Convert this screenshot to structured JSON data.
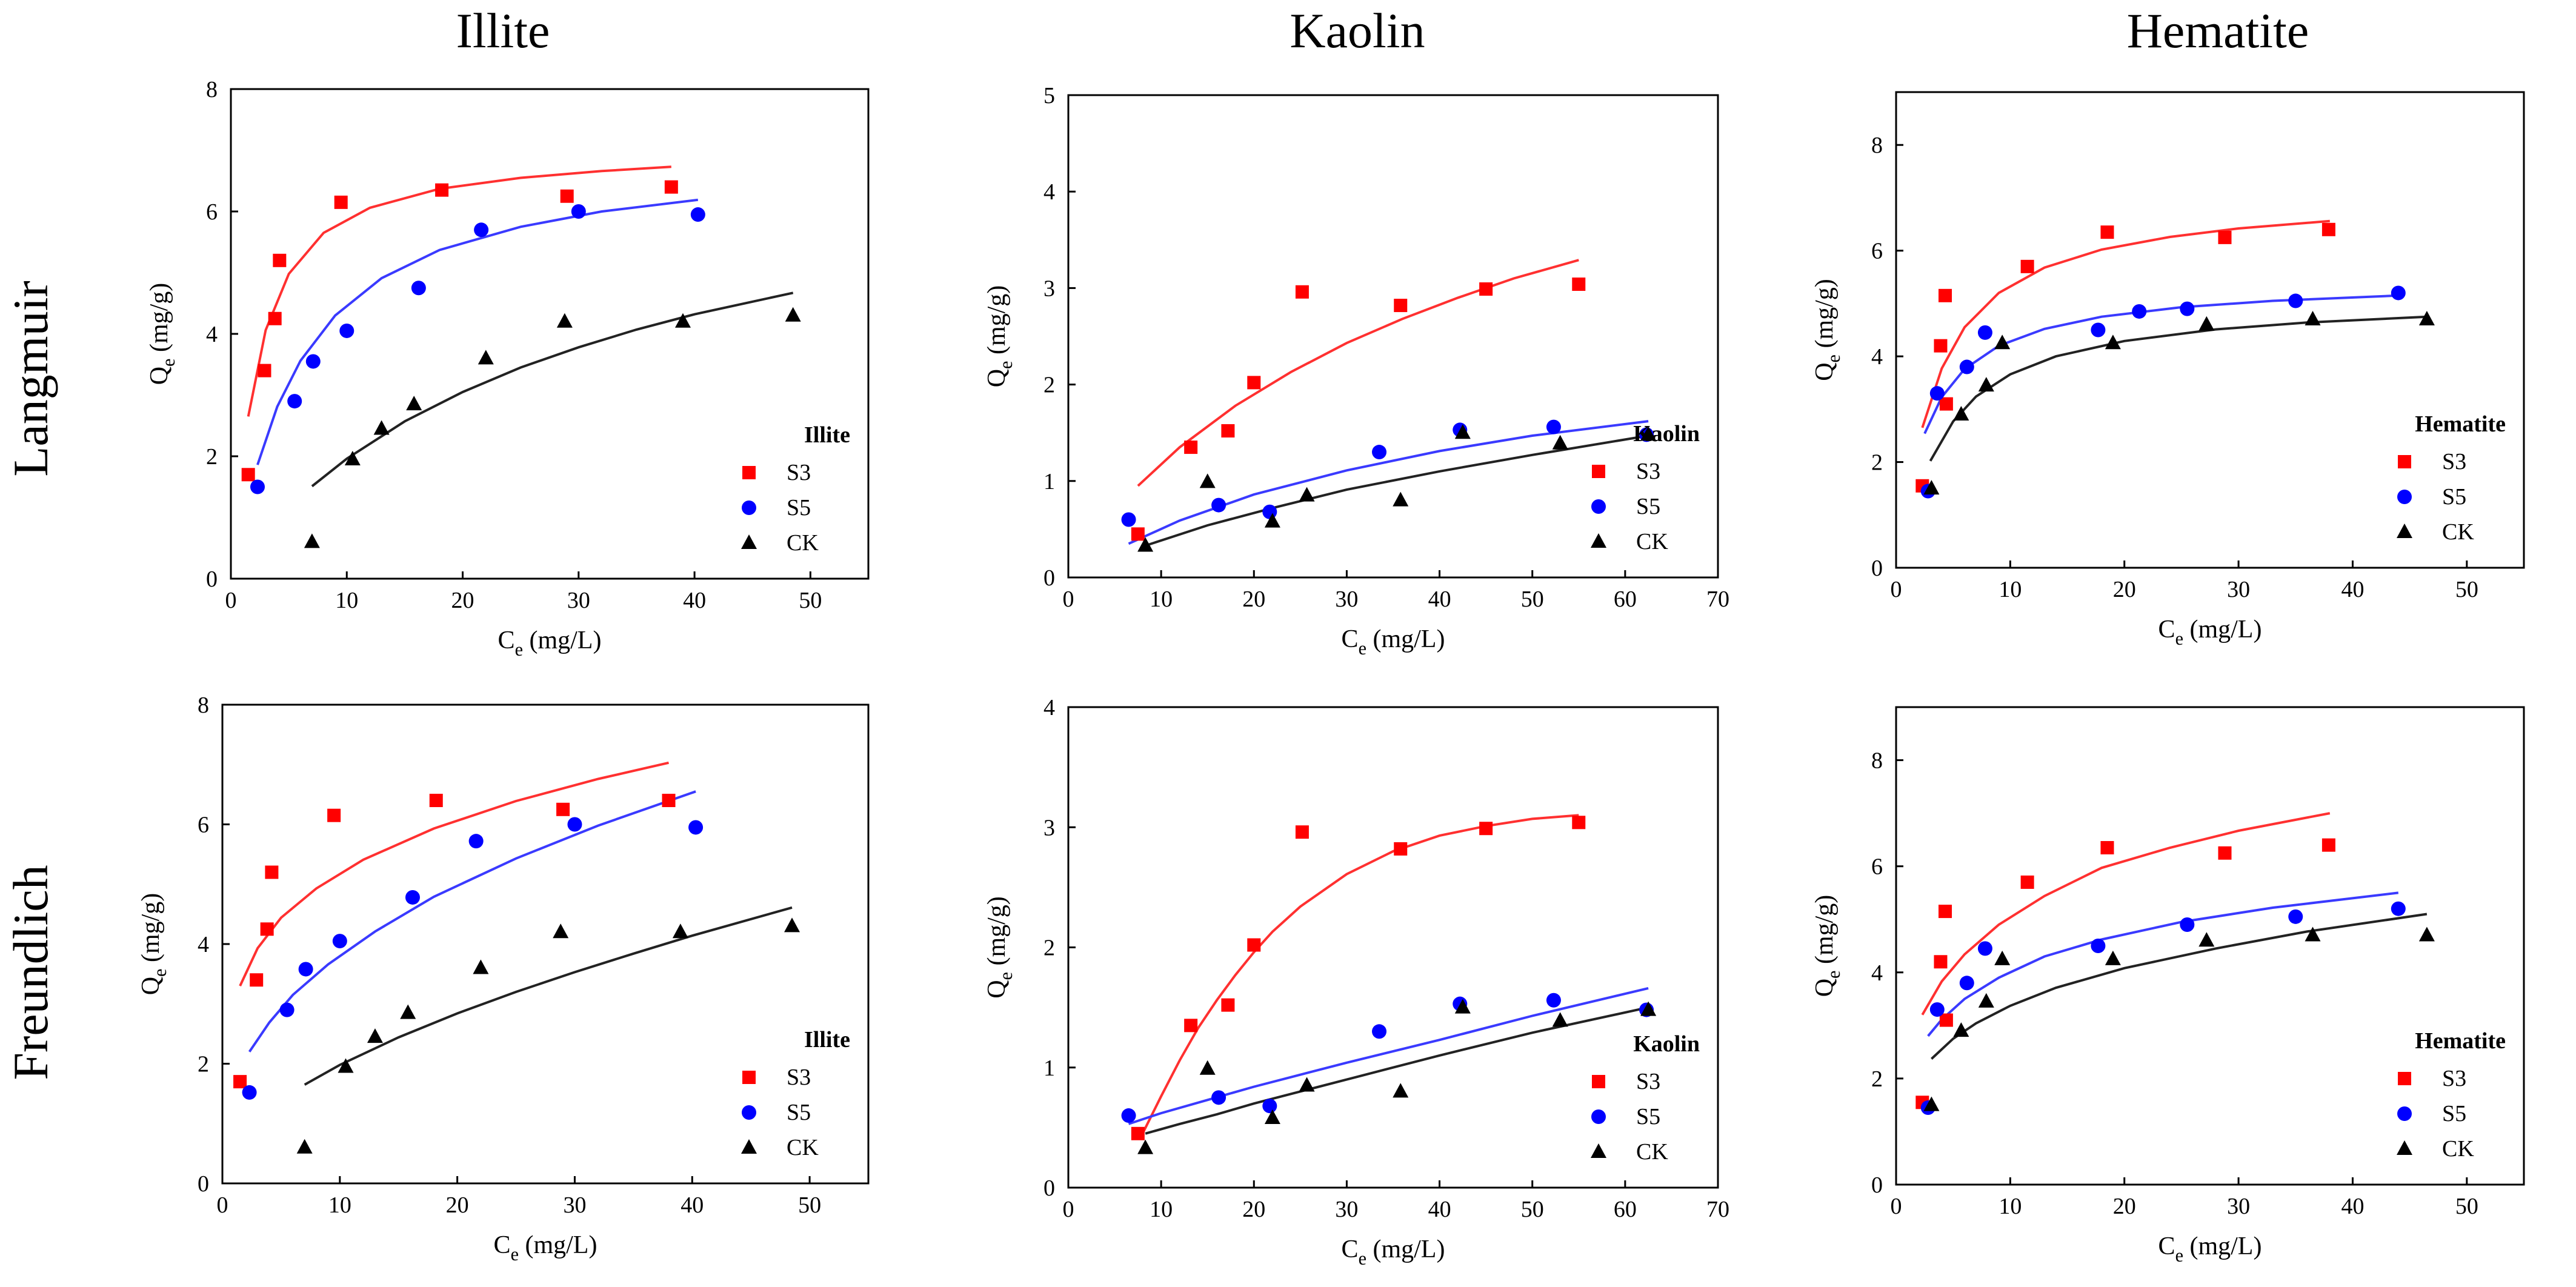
{
  "figure": {
    "column_titles": [
      "Illite",
      "Kaolin",
      "Hematite"
    ],
    "row_titles": [
      "Langmuir",
      "Freundlich"
    ]
  },
  "colors": {
    "S3": "#ff0000",
    "S5": "#0000ff",
    "CK": "#000000",
    "fit_S3": "#ff3030",
    "fit_S5": "#3a3aff",
    "fit_CK": "#222222"
  },
  "chart_data": [
    {
      "type": "scatter",
      "panel": "illite-langmuir",
      "model": "Langmuir",
      "xlabel": "Ce (mg/L)",
      "ylabel": "Qe (mg/g)",
      "xlim": [
        0,
        55
      ],
      "ylim": [
        0,
        8
      ],
      "xticks": [
        0,
        10,
        20,
        30,
        40,
        50
      ],
      "yticks": [
        0,
        2,
        4,
        6,
        8
      ],
      "legend_title": "Illite",
      "legend_position": "bottom-right",
      "series": [
        {
          "name": "S3",
          "marker": "square",
          "x": [
            1.5,
            2.9,
            3.8,
            4.2,
            9.5,
            18.2,
            29.0,
            38.0
          ],
          "y": [
            1.7,
            3.4,
            4.25,
            5.2,
            6.15,
            6.35,
            6.25,
            6.4
          ]
        },
        {
          "name": "S5",
          "marker": "circle",
          "x": [
            2.3,
            5.5,
            7.1,
            10.0,
            16.2,
            21.6,
            30.0,
            40.3
          ],
          "y": [
            1.5,
            2.9,
            3.55,
            4.05,
            4.75,
            5.7,
            6.0,
            5.95
          ]
        },
        {
          "name": "CK",
          "marker": "triangle",
          "x": [
            7.0,
            10.5,
            13.0,
            15.8,
            22.0,
            28.8,
            39.0,
            48.5
          ],
          "y": [
            0.6,
            1.95,
            2.45,
            2.85,
            3.6,
            4.2,
            4.2,
            4.3
          ]
        }
      ],
      "fits": [
        {
          "name": "S3",
          "x": [
            1.5,
            3,
            5,
            8,
            12,
            18,
            25,
            32,
            38
          ],
          "y": [
            2.65,
            4.06,
            4.98,
            5.65,
            6.06,
            6.37,
            6.55,
            6.66,
            6.73
          ]
        },
        {
          "name": "S5",
          "x": [
            2.3,
            4,
            6,
            9,
            13,
            18,
            25,
            32,
            40.3
          ],
          "y": [
            1.86,
            2.81,
            3.56,
            4.3,
            4.91,
            5.37,
            5.75,
            6.0,
            6.19
          ]
        },
        {
          "name": "CK",
          "x": [
            7,
            10,
            15,
            20,
            25,
            30,
            35,
            40,
            48.5
          ],
          "y": [
            1.51,
            1.96,
            2.57,
            3.05,
            3.45,
            3.78,
            4.07,
            4.32,
            4.67
          ]
        }
      ]
    },
    {
      "type": "scatter",
      "panel": "kaolin-langmuir",
      "model": "Langmuir",
      "xlabel": "Ce (mg/L)",
      "ylabel": "Qe (mg/g)",
      "xlim": [
        0,
        70
      ],
      "ylim": [
        0,
        5
      ],
      "xticks": [
        0,
        10,
        20,
        30,
        40,
        50,
        60,
        70
      ],
      "yticks": [
        0,
        1,
        2,
        3,
        4,
        5
      ],
      "legend_title": "Kaolin",
      "legend_position": "bottom-right",
      "series": [
        {
          "name": "S3",
          "marker": "square",
          "x": [
            7.5,
            13.2,
            17.2,
            20.0,
            25.2,
            35.8,
            45.0,
            55.0
          ],
          "y": [
            0.45,
            1.35,
            1.52,
            2.02,
            2.96,
            2.82,
            2.99,
            3.04
          ]
        },
        {
          "name": "S5",
          "marker": "circle",
          "x": [
            6.5,
            16.2,
            21.7,
            33.5,
            42.2,
            52.3,
            62.3
          ],
          "y": [
            0.6,
            0.75,
            0.68,
            1.3,
            1.53,
            1.56,
            1.48
          ]
        },
        {
          "name": "CK",
          "marker": "triangle",
          "x": [
            8.3,
            15.0,
            22.0,
            25.7,
            35.8,
            42.5,
            53.0,
            62.5
          ],
          "y": [
            0.33,
            0.99,
            0.58,
            0.85,
            0.8,
            1.5,
            1.39,
            1.48
          ]
        }
      ],
      "fits": [
        {
          "name": "S3",
          "x": [
            7.5,
            12,
            18,
            24,
            30,
            36,
            42,
            48,
            55
          ],
          "y": [
            0.95,
            1.35,
            1.78,
            2.13,
            2.43,
            2.68,
            2.9,
            3.1,
            3.29
          ]
        },
        {
          "name": "S5",
          "x": [
            6.5,
            12,
            20,
            30,
            40,
            50,
            62.5
          ],
          "y": [
            0.35,
            0.59,
            0.86,
            1.11,
            1.31,
            1.47,
            1.62
          ]
        },
        {
          "name": "CK",
          "x": [
            8.3,
            15,
            22,
            30,
            40,
            50,
            62.5
          ],
          "y": [
            0.33,
            0.54,
            0.72,
            0.91,
            1.1,
            1.27,
            1.47
          ]
        }
      ]
    },
    {
      "type": "scatter",
      "panel": "hematite-langmuir",
      "model": "Langmuir",
      "xlabel": "Ce (mg/L)",
      "ylabel": "Qe (mg/g)",
      "xlim": [
        0,
        55
      ],
      "ylim": [
        0,
        9
      ],
      "xticks": [
        0,
        10,
        20,
        30,
        40,
        50
      ],
      "yticks": [
        0,
        2,
        4,
        6,
        8
      ],
      "legend_title": "Hematite",
      "legend_position": "bottom-right",
      "series": [
        {
          "name": "S3",
          "marker": "square",
          "x": [
            2.3,
            3.9,
            4.3,
            4.4,
            11.5,
            18.5,
            28.8,
            37.9
          ],
          "y": [
            1.55,
            4.2,
            5.15,
            3.1,
            5.7,
            6.35,
            6.25,
            6.4
          ]
        },
        {
          "name": "S5",
          "marker": "circle",
          "x": [
            2.8,
            3.6,
            6.2,
            7.8,
            17.7,
            21.3,
            25.5,
            35.0,
            44.0
          ],
          "y": [
            1.45,
            3.3,
            3.8,
            4.45,
            4.5,
            4.85,
            4.9,
            5.05,
            5.2
          ]
        },
        {
          "name": "CK",
          "marker": "triangle",
          "x": [
            3.1,
            5.7,
            7.9,
            9.3,
            19.0,
            27.2,
            36.5,
            46.5
          ],
          "y": [
            1.5,
            2.9,
            3.45,
            4.25,
            4.25,
            4.6,
            4.7,
            4.7
          ]
        }
      ],
      "fits": [
        {
          "name": "S3",
          "x": [
            2.3,
            4,
            6,
            9,
            13,
            18,
            24,
            30,
            38
          ],
          "y": [
            2.65,
            3.77,
            4.55,
            5.2,
            5.68,
            6.02,
            6.26,
            6.42,
            6.56
          ]
        },
        {
          "name": "S5",
          "x": [
            2.5,
            4,
            6,
            9,
            13,
            18,
            25,
            33,
            44
          ],
          "y": [
            2.54,
            3.23,
            3.76,
            4.2,
            4.52,
            4.75,
            4.93,
            5.05,
            5.15
          ]
        },
        {
          "name": "CK",
          "x": [
            3,
            5,
            7,
            10,
            14,
            20,
            28,
            36,
            46.5
          ],
          "y": [
            2.02,
            2.77,
            3.24,
            3.66,
            4.0,
            4.29,
            4.51,
            4.64,
            4.75
          ]
        }
      ]
    },
    {
      "type": "scatter",
      "panel": "illite-freundlich",
      "model": "Freundlich",
      "xlabel": "Ce (mg/L)",
      "ylabel": "Qe (mg/g)",
      "xlim": [
        0,
        55
      ],
      "ylim": [
        0,
        8
      ],
      "xticks": [
        0,
        10,
        20,
        30,
        40,
        50
      ],
      "yticks": [
        0,
        2,
        4,
        6,
        8
      ],
      "legend_title": "Illite",
      "legend_position": "bottom-right",
      "series": [
        {
          "name": "S3",
          "marker": "square",
          "x": [
            1.5,
            2.9,
            3.8,
            4.2,
            9.5,
            18.2,
            29.0,
            38.0
          ],
          "y": [
            1.7,
            3.4,
            4.25,
            5.2,
            6.15,
            6.4,
            6.25,
            6.4
          ]
        },
        {
          "name": "S5",
          "marker": "circle",
          "x": [
            2.3,
            5.5,
            7.1,
            10.0,
            16.2,
            21.6,
            30.0,
            40.3
          ],
          "y": [
            1.52,
            2.9,
            3.58,
            4.05,
            4.78,
            5.72,
            6.0,
            5.95
          ]
        },
        {
          "name": "CK",
          "marker": "triangle",
          "x": [
            7.0,
            10.5,
            13.0,
            15.8,
            22.0,
            28.8,
            39.0,
            48.5
          ],
          "y": [
            0.6,
            1.95,
            2.45,
            2.85,
            3.6,
            4.2,
            4.2,
            4.3
          ]
        }
      ],
      "fits": [
        {
          "name": "S3",
          "x": [
            1.5,
            3,
            5,
            8,
            12,
            18,
            25,
            32,
            38
          ],
          "y": [
            3.3,
            3.93,
            4.44,
            4.93,
            5.41,
            5.93,
            6.39,
            6.76,
            7.03
          ]
        },
        {
          "name": "S5",
          "x": [
            2.3,
            4,
            6,
            9,
            13,
            18,
            25,
            32,
            40.3
          ],
          "y": [
            2.2,
            2.69,
            3.15,
            3.66,
            4.21,
            4.79,
            5.43,
            5.98,
            6.55
          ]
        },
        {
          "name": "CK",
          "x": [
            7,
            10,
            15,
            20,
            25,
            30,
            35,
            40,
            48.5
          ],
          "y": [
            1.65,
            1.98,
            2.44,
            2.84,
            3.2,
            3.53,
            3.84,
            4.14,
            4.61
          ]
        }
      ]
    },
    {
      "type": "scatter",
      "panel": "kaolin-freundlich",
      "model": "Freundlich",
      "xlabel": "Ce (mg/L)",
      "ylabel": "Qe (mg/g)",
      "xlim": [
        0,
        70
      ],
      "ylim": [
        0,
        4
      ],
      "xticks": [
        0,
        10,
        20,
        30,
        40,
        50,
        60,
        70
      ],
      "yticks": [
        0,
        1,
        2,
        3,
        4
      ],
      "legend_title": "Kaolin",
      "legend_position": "bottom-right",
      "series": [
        {
          "name": "S3",
          "marker": "square",
          "x": [
            7.5,
            13.2,
            17.2,
            20.0,
            25.2,
            35.8,
            45.0,
            55.0
          ],
          "y": [
            0.45,
            1.35,
            1.52,
            2.02,
            2.96,
            2.82,
            2.99,
            3.04
          ]
        },
        {
          "name": "S5",
          "marker": "circle",
          "x": [
            6.5,
            16.2,
            21.7,
            33.5,
            42.2,
            52.3,
            62.3
          ],
          "y": [
            0.6,
            0.75,
            0.68,
            1.3,
            1.53,
            1.56,
            1.48
          ]
        },
        {
          "name": "CK",
          "marker": "triangle",
          "x": [
            8.3,
            15.0,
            22.0,
            25.7,
            35.8,
            42.5,
            53.0,
            62.5
          ],
          "y": [
            0.33,
            0.99,
            0.58,
            0.85,
            0.8,
            1.5,
            1.39,
            1.48
          ]
        }
      ],
      "fits": [
        {
          "name": "S3",
          "x": [
            8,
            10,
            12,
            14,
            16,
            18,
            20,
            22,
            25,
            30,
            35,
            40,
            45,
            50,
            55
          ],
          "y": [
            0.45,
            0.76,
            1.06,
            1.33,
            1.56,
            1.77,
            1.96,
            2.13,
            2.34,
            2.61,
            2.8,
            2.93,
            3.01,
            3.07,
            3.1
          ]
        },
        {
          "name": "S5",
          "x": [
            6.5,
            10,
            15,
            20,
            30,
            40,
            50,
            62.5
          ],
          "y": [
            0.53,
            0.62,
            0.73,
            0.84,
            1.04,
            1.23,
            1.43,
            1.66
          ]
        },
        {
          "name": "CK",
          "x": [
            8.3,
            12,
            16,
            20,
            30,
            40,
            50,
            62.5
          ],
          "y": [
            0.45,
            0.53,
            0.61,
            0.7,
            0.9,
            1.1,
            1.29,
            1.5
          ]
        }
      ]
    },
    {
      "type": "scatter",
      "panel": "hematite-freundlich",
      "model": "Freundlich",
      "xlabel": "Ce (mg/L)",
      "ylabel": "Qe (mg/g)",
      "xlim": [
        0,
        55
      ],
      "ylim": [
        0,
        9
      ],
      "xticks": [
        0,
        10,
        20,
        30,
        40,
        50
      ],
      "yticks": [
        0,
        2,
        4,
        6,
        8
      ],
      "legend_title": "Hematite",
      "legend_position": "bottom-right",
      "series": [
        {
          "name": "S3",
          "marker": "square",
          "x": [
            2.3,
            3.9,
            4.3,
            4.4,
            11.5,
            18.5,
            28.8,
            37.9
          ],
          "y": [
            1.55,
            4.2,
            5.15,
            3.1,
            5.7,
            6.35,
            6.25,
            6.4
          ]
        },
        {
          "name": "S5",
          "marker": "circle",
          "x": [
            2.8,
            3.6,
            6.2,
            7.8,
            17.7,
            25.5,
            35.0,
            44.0
          ],
          "y": [
            1.45,
            3.3,
            3.8,
            4.45,
            4.5,
            4.9,
            5.05,
            5.2
          ]
        },
        {
          "name": "CK",
          "marker": "triangle",
          "x": [
            3.1,
            5.7,
            7.9,
            9.3,
            19.0,
            27.2,
            36.5,
            46.5
          ],
          "y": [
            1.5,
            2.9,
            3.45,
            4.25,
            4.25,
            4.6,
            4.7,
            4.7
          ]
        }
      ],
      "fits": [
        {
          "name": "S3",
          "x": [
            2.3,
            4,
            6,
            9,
            13,
            18,
            24,
            30,
            38
          ],
          "y": [
            3.2,
            3.83,
            4.34,
            4.9,
            5.44,
            5.97,
            6.35,
            6.67,
            7.0
          ]
        },
        {
          "name": "S5",
          "x": [
            2.8,
            4,
            6,
            9,
            13,
            18,
            25,
            33,
            44
          ],
          "y": [
            2.8,
            3.11,
            3.5,
            3.9,
            4.3,
            4.62,
            4.95,
            5.22,
            5.5
          ]
        },
        {
          "name": "CK",
          "x": [
            3.1,
            5,
            7,
            10,
            14,
            20,
            28,
            36,
            46.5
          ],
          "y": [
            2.37,
            2.75,
            3.04,
            3.37,
            3.71,
            4.08,
            4.45,
            4.77,
            5.1
          ]
        }
      ]
    }
  ]
}
